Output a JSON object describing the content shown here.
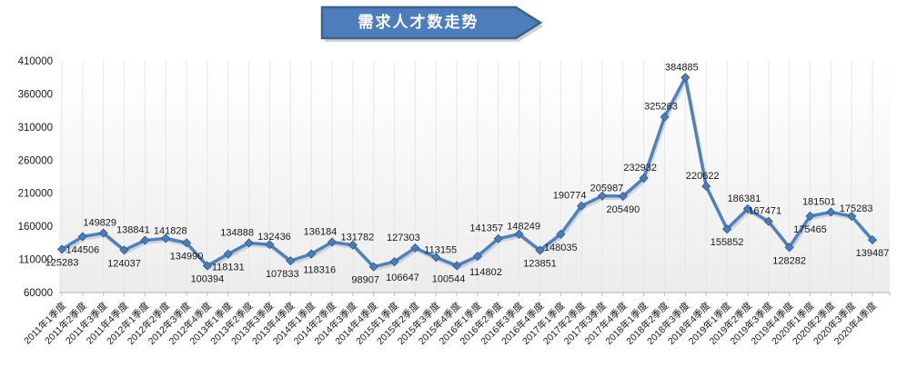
{
  "title": {
    "text": "需求人才数走势"
  },
  "colors": {
    "line": "#4F81BD",
    "line_shadow": "#9AA7B8",
    "marker_fill": "#4A7EBB",
    "marker_edge": "#2F5A87",
    "banner_fill": "#4D7DBB",
    "banner_border": "#38618C",
    "banner_shadow": "#C8C8C8",
    "grid": "#E7E7E7",
    "axis": "#BFBFBF",
    "text": "#1A1A1A",
    "plot_bg_top": "#FFFFFF",
    "plot_bg_bottom": "#ECECEC"
  },
  "chart_data": {
    "type": "line",
    "title": "需求人才数走势",
    "categories": [
      "2011年1季度",
      "2011年2季度",
      "2011年3季度",
      "2011年4季度",
      "2012年1季度",
      "2012年2季度",
      "2012年3季度",
      "2012年4季度",
      "2013年1季度",
      "2013年2季度",
      "2013年3季度",
      "2013年4季度",
      "2014年1季度",
      "2014年2季度",
      "2014年3季度",
      "2014年4季度",
      "2015年1季度",
      "2015年2季度",
      "2015年3季度",
      "2015年4季度",
      "2016年1季度",
      "2016年2季度",
      "2016年3季度",
      "2016年4季度",
      "2017年1季度",
      "2017年2季度",
      "2017年3季度",
      "2017年4季度",
      "2018年1季度",
      "2018年2季度",
      "2018年3季度",
      "2018年4季度",
      "2019年1季度",
      "2019年2季度",
      "2019年3季度",
      "2019年4季度",
      "2020年1季度",
      "2020年2季度",
      "2020年3季度",
      "2020年4季度"
    ],
    "values": [
      125283,
      144506,
      149829,
      124037,
      138841,
      141828,
      134990,
      100394,
      118131,
      134888,
      132436,
      107833,
      118316,
      136184,
      131782,
      98907,
      106647,
      127303,
      113155,
      100544,
      114802,
      141357,
      148249,
      123851,
      148035,
      190774,
      205987,
      205490,
      232932,
      325263,
      384885,
      220622,
      155852,
      186381,
      167471,
      128282,
      175465,
      181501,
      175283,
      139487
    ],
    "label_positions": [
      "b",
      "b",
      "a",
      "b",
      "a",
      "a",
      "b",
      "b",
      "b",
      "a",
      "a",
      "b",
      "b",
      "a",
      "a",
      "b",
      "b",
      "a",
      "a",
      "b",
      "b",
      "a",
      "a",
      "b",
      "b",
      "a",
      "a",
      "b",
      "a",
      "a",
      "a",
      "a",
      "b",
      "a",
      "a",
      "b",
      "b",
      "a",
      "a",
      "b"
    ],
    "yticks": [
      60000,
      110000,
      160000,
      210000,
      260000,
      310000,
      360000,
      410000
    ],
    "ylim": [
      60000,
      410000
    ],
    "xlabel": "",
    "ylabel": "",
    "grid": "vertical-only",
    "legend": "none",
    "data_labels": "shown-on-every-point",
    "marker": "diamond"
  }
}
